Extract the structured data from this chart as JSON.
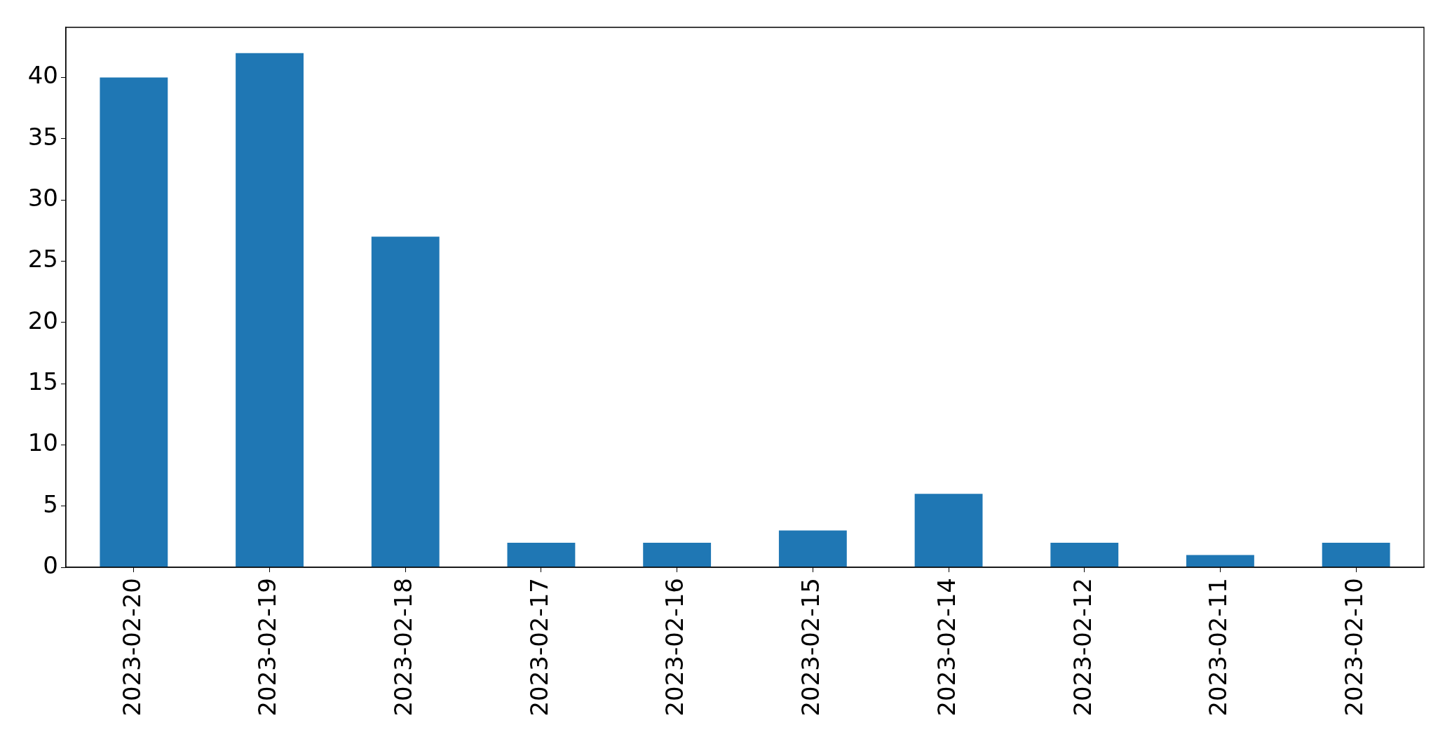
{
  "chart_data": {
    "type": "bar",
    "categories": [
      "2023-02-20",
      "2023-02-19",
      "2023-02-18",
      "2023-02-17",
      "2023-02-16",
      "2023-02-15",
      "2023-02-14",
      "2023-02-12",
      "2023-02-11",
      "2023-02-10"
    ],
    "values": [
      40,
      42,
      27,
      2,
      2,
      3,
      6,
      2,
      1,
      2
    ],
    "color": "#1f77b4",
    "ylim": [
      0,
      44.1
    ],
    "yticks": [
      0,
      5,
      10,
      15,
      20,
      25,
      30,
      35,
      40
    ]
  }
}
